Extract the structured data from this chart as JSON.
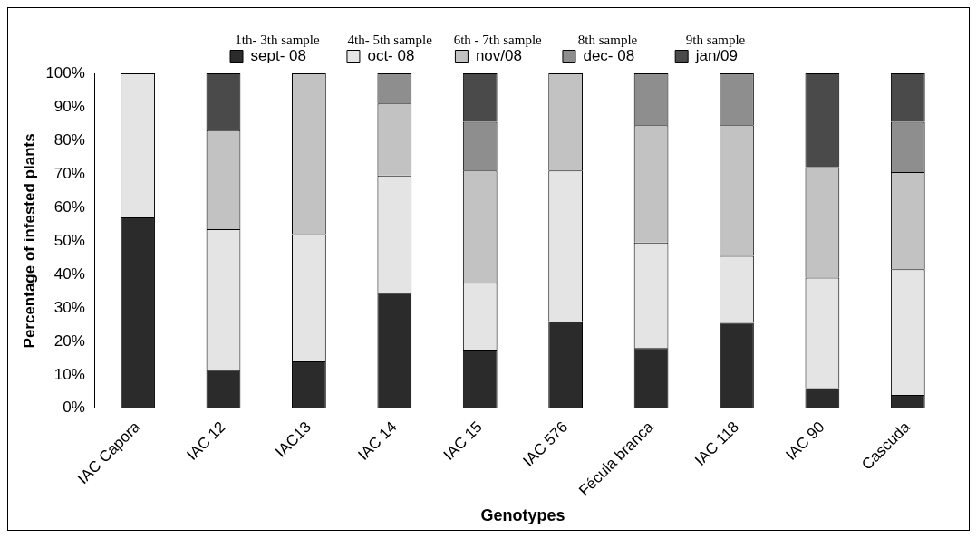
{
  "chart_data": {
    "type": "bar",
    "stacked": true,
    "xlabel": "Genotypes",
    "ylabel": "Percentage of infested plants",
    "categories": [
      "IAC Capora",
      "IAC 12",
      "IAC13",
      "IAC 14",
      "IAC 15",
      "IAC 576",
      "Fécula branca",
      "IAC 118",
      "IAC 90",
      "Cascuda"
    ],
    "series": [
      {
        "name": "sept- 08",
        "color": "#2b2b2b",
        "values": [
          57,
          11.5,
          14,
          34.5,
          17.5,
          26,
          18,
          25.5,
          6,
          4
        ]
      },
      {
        "name": "oct- 08",
        "color": "#e4e4e4",
        "values": [
          43,
          42,
          38,
          35,
          20,
          45,
          31.5,
          20,
          33,
          37.5
        ]
      },
      {
        "name": "nov/08",
        "color": "#c2c2c2",
        "values": [
          0,
          29.5,
          48,
          21.5,
          33.5,
          29,
          35,
          39,
          33,
          29
        ]
      },
      {
        "name": "dec- 08",
        "color": "#8e8e8e",
        "values": [
          0,
          0,
          0,
          9,
          14.5,
          0,
          15.5,
          15.5,
          0,
          15
        ]
      },
      {
        "name": "jan/09",
        "color": "#4a4a4a",
        "values": [
          0,
          17,
          0,
          0,
          14.5,
          0,
          0,
          0,
          28,
          14.5
        ]
      }
    ],
    "ylim": [
      0,
      100
    ],
    "yticks": [
      {
        "value": 0,
        "label": "0%"
      },
      {
        "value": 10,
        "label": "10%"
      },
      {
        "value": 20,
        "label": "20%"
      },
      {
        "value": 30,
        "label": "30%"
      },
      {
        "value": 40,
        "label": "40%"
      },
      {
        "value": 50,
        "label": "50%"
      },
      {
        "value": 60,
        "label": "60%"
      },
      {
        "value": 70,
        "label": "70%"
      },
      {
        "value": 80,
        "label": "80%"
      },
      {
        "value": 90,
        "label": "90%"
      },
      {
        "value": 100,
        "label": "100%"
      }
    ],
    "grid": false,
    "legend": "top",
    "annotations": [
      "1th- 3th sample",
      "4th- 5th sample",
      "6th - 7th sample",
      "8th sample",
      "9th sample"
    ]
  }
}
